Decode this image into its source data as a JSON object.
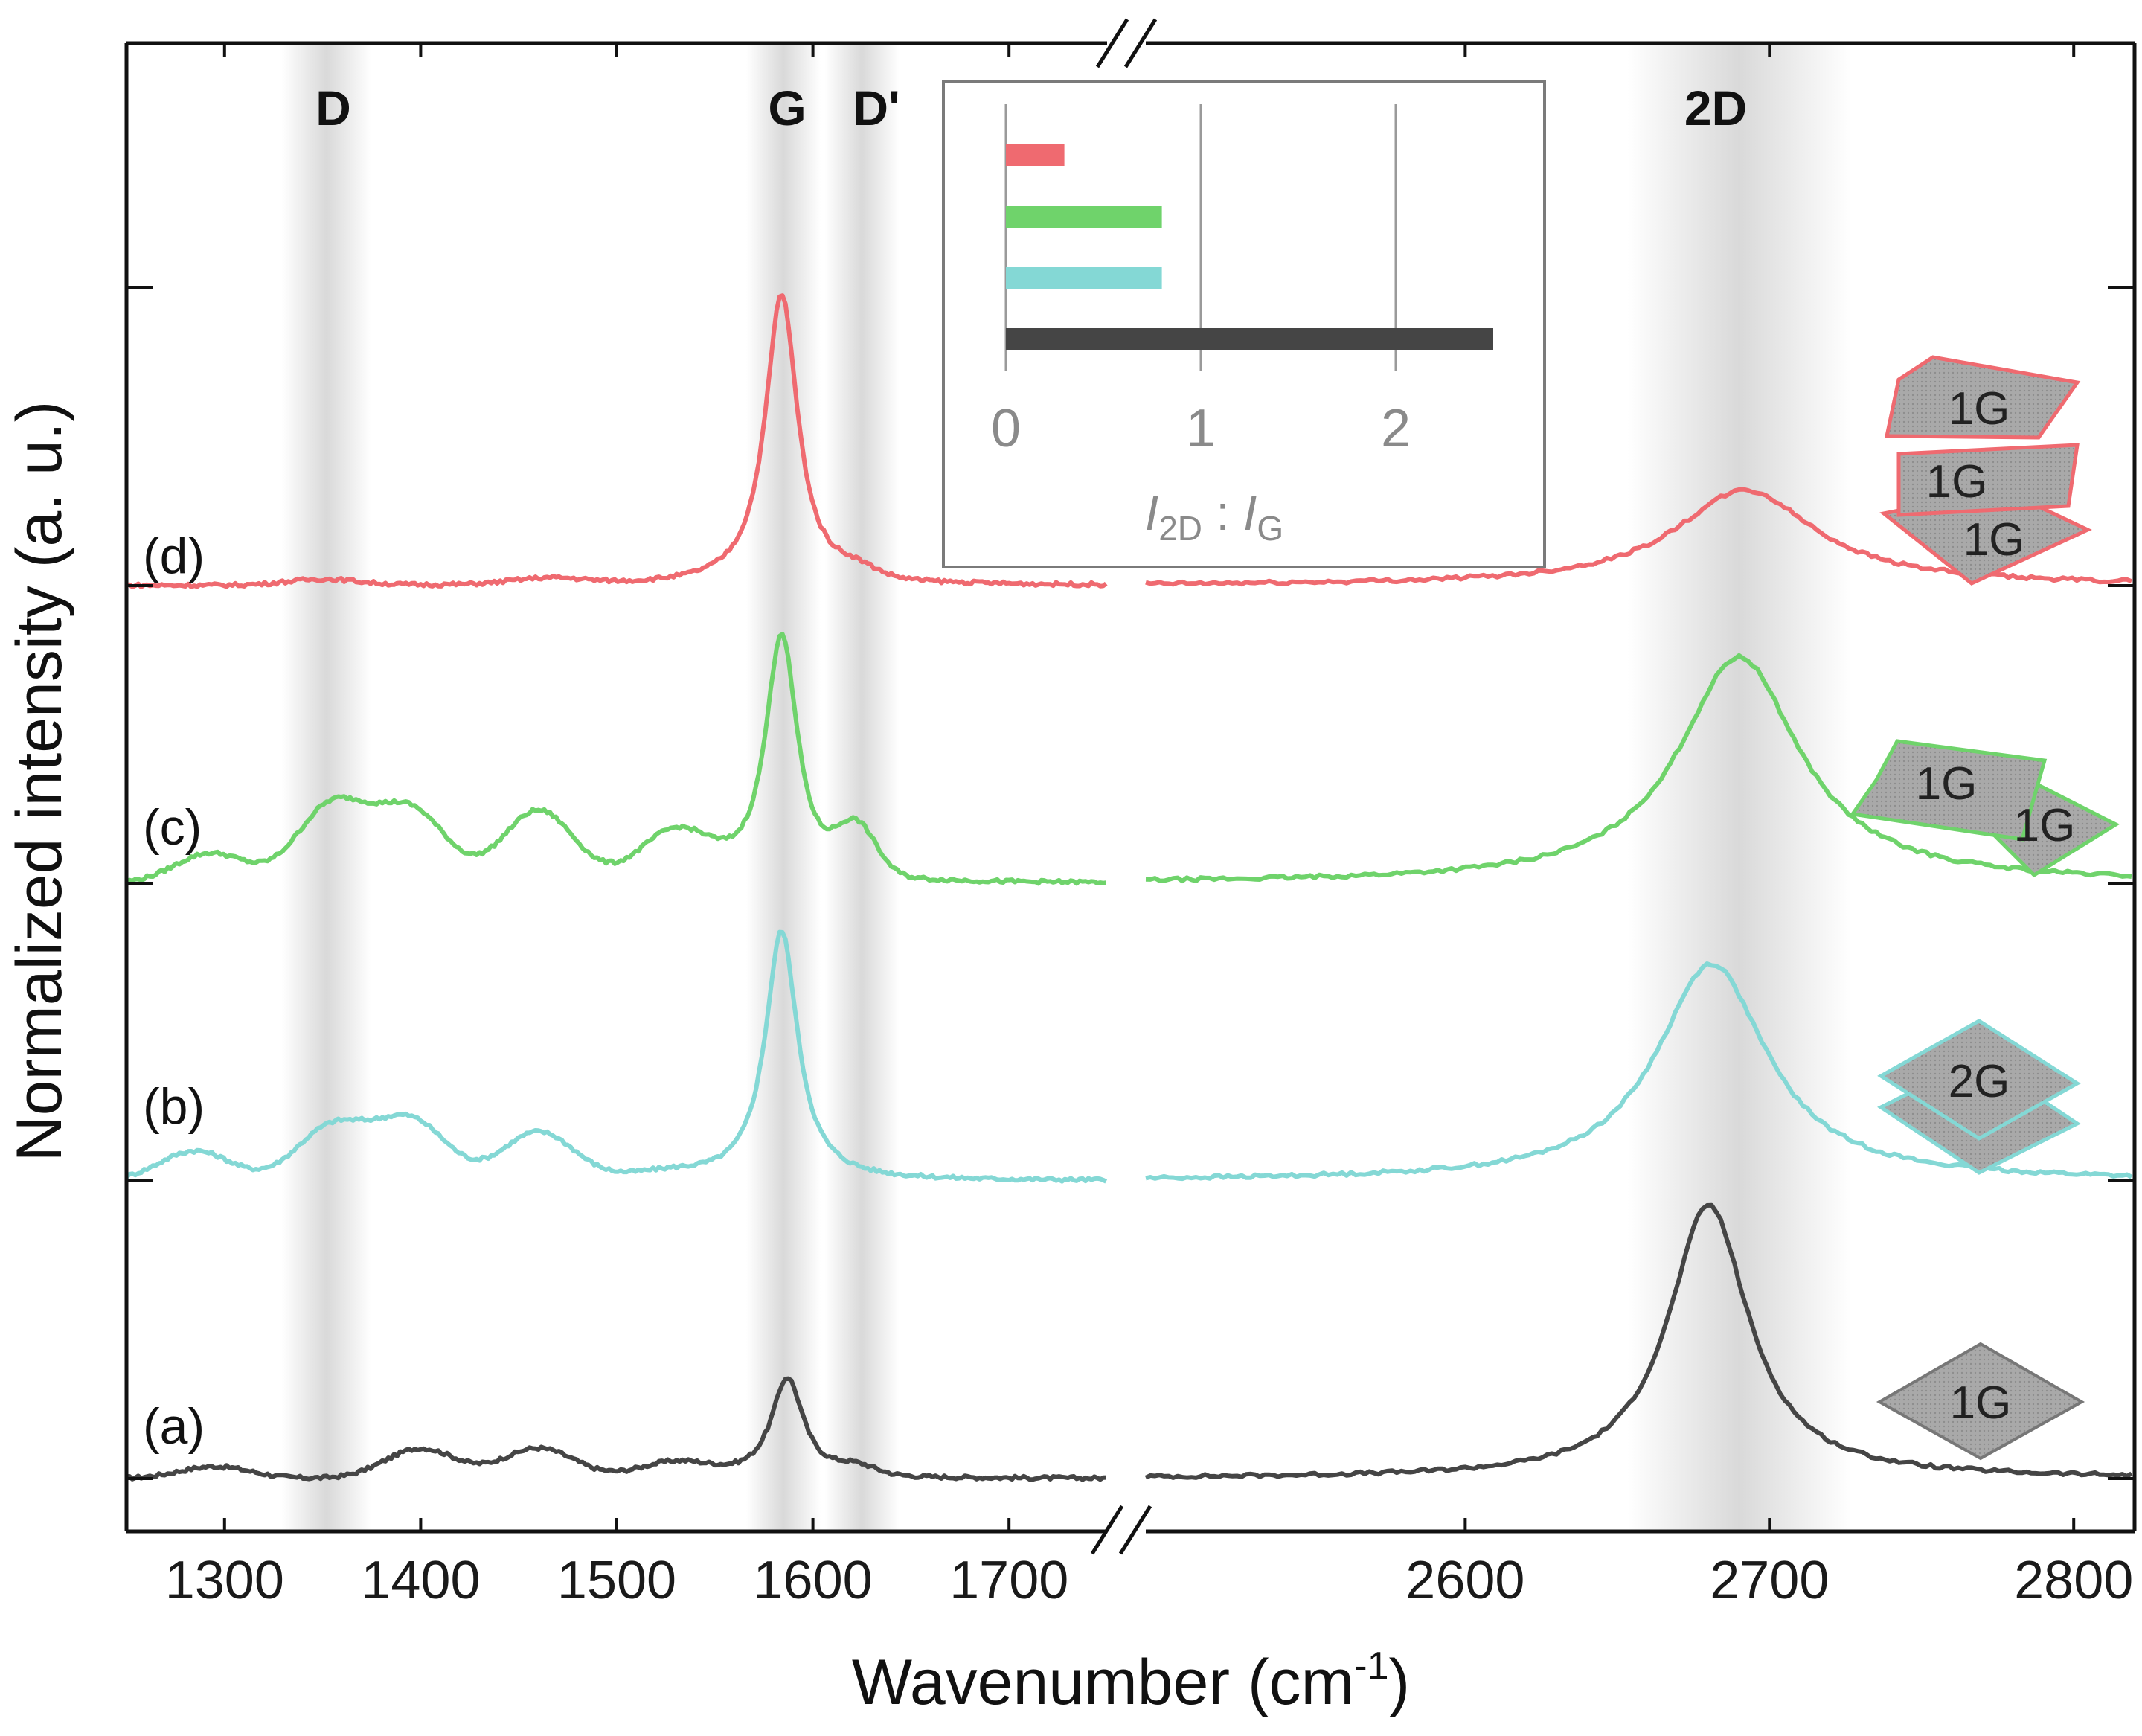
{
  "chart_data": {
    "type": "line",
    "xlabel": "Wavenumber (cm",
    "xlabel_sup": "-1",
    "xlabel_end": ")",
    "ylabel": "Normalized intensity (a. u.)",
    "x_segments": [
      {
        "xlim": [
          1250,
          1750
        ],
        "ticks": [
          1300,
          1400,
          1500,
          1600,
          1700
        ]
      },
      {
        "xlim": [
          2495,
          2820
        ],
        "ticks": [
          2600,
          2700,
          2800
        ]
      }
    ],
    "axis_break": "//",
    "bands": [
      {
        "label": "D",
        "center": 1352
      },
      {
        "label": "G",
        "center": 1585
      },
      {
        "label": "D'",
        "center": 1625
      },
      {
        "label": "2D",
        "center": 2690
      }
    ],
    "series": [
      {
        "name": "(a)",
        "sample": "1G",
        "color": "#454545",
        "offset": 0.0,
        "G_peak": {
          "center": 1587,
          "height": 0.34,
          "width": 10
        },
        "D_features": [
          [
            1295,
            0.04
          ],
          [
            1400,
            0.1
          ],
          [
            1460,
            0.1
          ],
          [
            1530,
            0.05
          ]
        ],
        "Dprime": 0.03,
        "2D_peak": {
          "center": 2680,
          "height": 0.92,
          "width": 16
        }
      },
      {
        "name": "(b)",
        "sample": "2G",
        "color": "#84d8d5",
        "offset": 1.0,
        "G_peak": {
          "center": 1584,
          "height": 0.84,
          "width": 10
        },
        "D_features": [
          [
            1285,
            0.1
          ],
          [
            1355,
            0.18
          ],
          [
            1395,
            0.2
          ],
          [
            1460,
            0.16
          ],
          [
            1525,
            0.02
          ]
        ],
        "Dprime": 0.0,
        "2D_peak": {
          "center": 2681,
          "height": 0.73,
          "width": 22
        }
      },
      {
        "name": "(c)",
        "sample": "1G + 1G",
        "color": "#6fd36b",
        "offset": 2.0,
        "G_peak": {
          "center": 1584,
          "height": 0.84,
          "width": 10
        },
        "D_features": [
          [
            1293,
            0.1
          ],
          [
            1355,
            0.26
          ],
          [
            1395,
            0.24
          ],
          [
            1460,
            0.24
          ],
          [
            1530,
            0.16
          ]
        ],
        "Dprime": 0.16,
        "2D_peak": {
          "center": 2690,
          "height": 0.76,
          "width": 24
        }
      },
      {
        "name": "(d)",
        "sample": "1G + 1G + 1G",
        "color": "#ef6a70",
        "offset": 3.0,
        "G_peak": {
          "center": 1584,
          "height": 0.98,
          "width": 10
        },
        "D_features": [
          [
            1350,
            0.02
          ],
          [
            1465,
            0.02
          ]
        ],
        "Dprime": 0.03,
        "2D_peak": {
          "center": 2692,
          "height": 0.32,
          "width": 28
        }
      }
    ],
    "y_ticks": [
      0,
      1,
      2,
      3,
      4
    ],
    "inset": {
      "type": "bar",
      "orientation": "horizontal",
      "xlabel_I": "I",
      "xlabel_sub1": "2D",
      "xlabel_sep": " : ",
      "xlabel_sub2": "G",
      "xlim": [
        0,
        2.6
      ],
      "ticks": [
        "0",
        "1",
        "2"
      ],
      "bars": [
        {
          "sample": "(d)",
          "value": 0.3,
          "color": "#ef6a70"
        },
        {
          "sample": "(c)",
          "value": 0.8,
          "color": "#6fd36b"
        },
        {
          "sample": "(b)",
          "value": 0.8,
          "color": "#84d8d5"
        },
        {
          "sample": "(a)",
          "value": 2.5,
          "color": "#454545"
        }
      ]
    },
    "flake_icons": [
      {
        "series": "(d)",
        "labels": [
          "1G",
          "1G",
          "1G"
        ]
      },
      {
        "series": "(c)",
        "labels": [
          "1G",
          "1G"
        ]
      },
      {
        "series": "(b)",
        "labels": [
          "2G"
        ]
      },
      {
        "series": "(a)",
        "labels": [
          "1G"
        ]
      }
    ]
  }
}
